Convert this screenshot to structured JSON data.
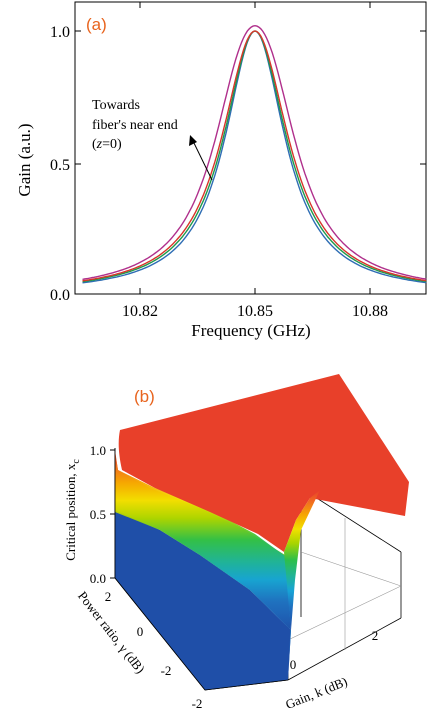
{
  "panel_a": {
    "tag": "(a)",
    "tag_color": "#e8641e",
    "annotation": {
      "line1": "Towards",
      "line2": "fiber's near end",
      "line3": "(z=0)"
    }
  },
  "panel_b": {
    "tag": "(b)",
    "tag_color": "#e8641e",
    "z_label": "Critical position, x",
    "z_label_sub": "c",
    "x_label": "Gain, k (dB)",
    "y_label": "Power ratio, γ (dB)",
    "z_ticks": [
      "0.0",
      "0.5",
      "1.0"
    ],
    "x_ticks": [
      "0",
      "2"
    ],
    "y_ticks": [
      "2",
      "0",
      "-2",
      "-2"
    ]
  },
  "chart_data": [
    {
      "type": "line",
      "title": "",
      "xlabel": "Frequency (GHz)",
      "ylabel": "Gain (a.u.)",
      "xlim": [
        10.805,
        10.895
      ],
      "ylim": [
        0.0,
        1.05
      ],
      "x_ticks": [
        "10.82",
        "10.85",
        "10.88"
      ],
      "y_ticks": [
        "0.0",
        "0.5",
        "1.0"
      ],
      "center": 10.85,
      "series": [
        {
          "color": "#2e6db4",
          "peaks": [
            10.85
          ],
          "width": 0.0095,
          "peak_value": 1.0
        },
        {
          "color": "#1e9a4a",
          "peaks": [
            10.85
          ],
          "width": 0.01,
          "peak_value": 1.0
        },
        {
          "color": "#d8362a",
          "peaks": [
            10.8485,
            10.8515
          ],
          "width": 0.0102,
          "peak_value": 1.0
        },
        {
          "color": "#b0308c",
          "peaks": [
            10.8465,
            10.8535
          ],
          "width": 0.0101,
          "peak_value": 1.02
        }
      ]
    },
    {
      "type": "surface3d",
      "title": "",
      "xlabel": "Gain, k (dB)",
      "ylabel": "Power ratio, γ (dB)",
      "zlabel": "Critical position, x_c",
      "xlim": [
        -0.5,
        2.5
      ],
      "ylim": [
        -2.5,
        2.5
      ],
      "zlim": [
        0.0,
        1.0
      ],
      "colormap": [
        "#1f4fa8",
        "#17a3d6",
        "#2dbf4a",
        "#a9d400",
        "#f2e000",
        "#f29a00",
        "#e8402a"
      ]
    }
  ]
}
